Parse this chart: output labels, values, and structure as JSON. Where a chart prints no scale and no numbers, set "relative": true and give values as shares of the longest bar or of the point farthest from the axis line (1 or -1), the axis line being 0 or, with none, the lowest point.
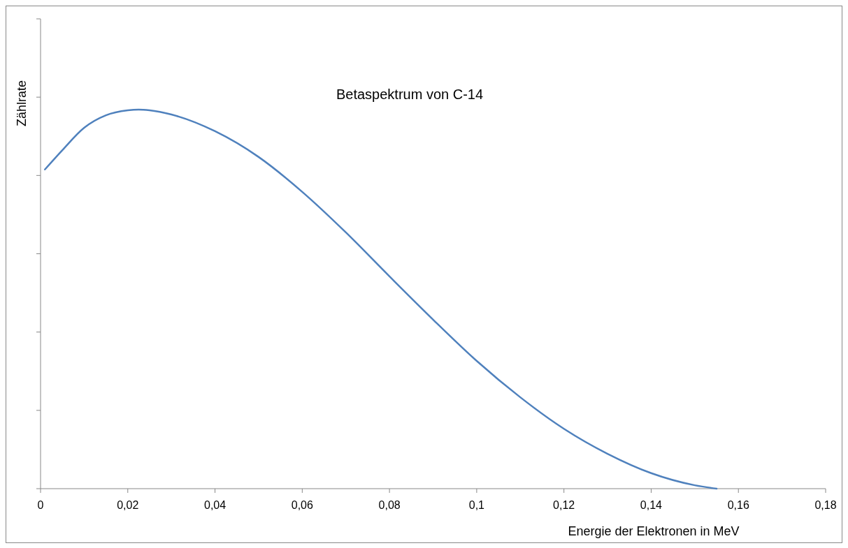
{
  "chart_data": {
    "type": "line",
    "title": "Betaspektrum von C-14",
    "xlabel": "Energie der Elektronen in MeV",
    "ylabel": "Zählrate",
    "relative": true,
    "xlim": [
      0,
      0.18
    ],
    "xticks": [
      0,
      {
        "value": 0.02,
        "label": "0,02"
      },
      {
        "value": 0.04,
        "label": "0,04"
      },
      {
        "value": 0.06,
        "label": "0,06"
      },
      {
        "value": 0.08,
        "label": "0,08"
      },
      {
        "value": 0.1,
        "label": "0,1"
      },
      {
        "value": 0.12,
        "label": "0,12"
      },
      {
        "value": 0.14,
        "label": "0,14"
      },
      {
        "value": 0.16,
        "label": "0,16"
      },
      {
        "value": 0.18,
        "label": "0,18"
      }
    ],
    "series": [
      {
        "color": "#4f81bd",
        "x": [
          0.001,
          0.005,
          0.01,
          0.015,
          0.02,
          0.0225,
          0.025,
          0.03,
          0.04,
          0.05,
          0.06,
          0.07,
          0.08,
          0.09,
          0.1,
          0.11,
          0.12,
          0.13,
          0.14,
          0.15,
          0.155
        ],
        "values": [
          0.842,
          0.893,
          0.952,
          0.985,
          0.998,
          1,
          0.998,
          0.987,
          0.943,
          0.875,
          0.783,
          0.676,
          0.56,
          0.446,
          0.337,
          0.241,
          0.158,
          0.092,
          0.041,
          0.009,
          0
        ]
      }
    ]
  }
}
